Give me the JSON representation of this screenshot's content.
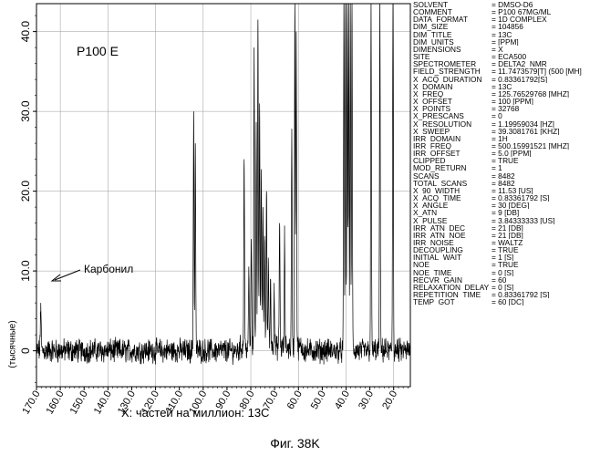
{
  "chart_data": {
    "type": "line",
    "title": "",
    "annotation": "P100 E",
    "peak_label": "Карбонил",
    "xlabel": "X: частей на миллион: 13C",
    "ylabel": "(тысячные)",
    "xlim": [
      170.0,
      13.0
    ],
    "ylim": [
      -4.5,
      43.5
    ],
    "x_ticks": [
      "170.0",
      "160.0",
      "150.0",
      "140.0",
      "130.0",
      "120.0",
      "110.0",
      "100.0",
      "90.0",
      "80.0",
      "70.0",
      "60.0",
      "50.0",
      "40.0",
      "30.0",
      "20.0"
    ],
    "y_ticks": [
      "0",
      "10.0",
      "20.0",
      "30.0",
      "40.0"
    ],
    "grid": true,
    "series": [
      {
        "peaks": [
          {
            "x": 168.2,
            "y": 6.0
          },
          {
            "x": 104.0,
            "y": 30.0
          },
          {
            "x": 103.3,
            "y": 26.0
          },
          {
            "x": 82.8,
            "y": 24.0
          },
          {
            "x": 80.8,
            "y": 9.5
          },
          {
            "x": 79.8,
            "y": 14.0
          },
          {
            "x": 78.6,
            "y": 38.0
          },
          {
            "x": 77.7,
            "y": 28.0
          },
          {
            "x": 77.0,
            "y": 41.5
          },
          {
            "x": 76.3,
            "y": 31.0
          },
          {
            "x": 75.6,
            "y": 22.0
          },
          {
            "x": 74.9,
            "y": 18.0
          },
          {
            "x": 74.2,
            "y": 14.0
          },
          {
            "x": 73.4,
            "y": 20.0
          },
          {
            "x": 72.6,
            "y": 11.0
          },
          {
            "x": 71.7,
            "y": 9.0
          },
          {
            "x": 70.2,
            "y": 8.0
          },
          {
            "x": 67.9,
            "y": 16.0
          },
          {
            "x": 65.8,
            "y": 14.0
          },
          {
            "x": 62.8,
            "y": 27.0
          },
          {
            "x": 61.5,
            "y": 43.5
          },
          {
            "x": 60.9,
            "y": 40.0
          },
          {
            "x": 40.9,
            "y": 43.5
          },
          {
            "x": 40.2,
            "y": 43.5
          },
          {
            "x": 39.5,
            "y": 43.5
          },
          {
            "x": 38.9,
            "y": 43.5
          },
          {
            "x": 38.2,
            "y": 43.5
          },
          {
            "x": 37.5,
            "y": 43.5
          },
          {
            "x": 29.5,
            "y": 43.5
          },
          {
            "x": 25.8,
            "y": 43.5
          },
          {
            "x": 20.3,
            "y": 43.5
          }
        ]
      }
    ]
  },
  "params": [
    {
      "k": "SOLVENT",
      "v": "= DMSO-D6"
    },
    {
      "k": "COMMENT",
      "v": "= P100 67MG/ML"
    },
    {
      "k": "DATA_FORMAT",
      "v": "= 1D COMPLEX"
    },
    {
      "k": "DIM_SIZE",
      "v": "= 104856"
    },
    {
      "k": "DIM_TITLE",
      "v": "= 13C"
    },
    {
      "k": "DIM_UNITS",
      "v": "= [PPM]"
    },
    {
      "k": "DIMENSIONS",
      "v": "= X"
    },
    {
      "k": "SITE",
      "v": "= ECA500"
    },
    {
      "k": "SPECTROMETER",
      "v": "= DELTA2_NMR"
    },
    {
      "k": "FIELD_STRENGTH",
      "v": "= 11.7473579[T] (500 [MH]"
    },
    {
      "k": "X_ACQ_DURATION",
      "v": "= 0.83361792[S]"
    },
    {
      "k": "X_DOMAIN",
      "v": "= 13C"
    },
    {
      "k": "X_FREQ",
      "v": "= 125.76529768 [MHZ]"
    },
    {
      "k": "X_OFFSET",
      "v": "= 100 [PPM]"
    },
    {
      "k": "X_POINTS",
      "v": "= 32768"
    },
    {
      "k": "X_PRESCANS",
      "v": "= 0"
    },
    {
      "k": "X_RESOLUTION",
      "v": "= 1.19959034 [HZ]"
    },
    {
      "k": "X_SWEEP",
      "v": "= 39.3081761 [KHZ]"
    },
    {
      "k": "IRR_DOMAIN",
      "v": "= 1H"
    },
    {
      "k": "IRR_FREQ",
      "v": "= 500.15991521 [MHZ]"
    },
    {
      "k": "IRR_OFFSET",
      "v": "= 5.0 [PPM]"
    },
    {
      "k": "CLIPPED",
      "v": "= TRUE"
    },
    {
      "k": "MOD_RETURN",
      "v": "= 1"
    },
    {
      "k": "SCANS",
      "v": "= 8482"
    },
    {
      "k": "TOTAL_SCANS",
      "v": "= 8482"
    },
    {
      "k": "X_90_WIDTH",
      "v": "= 11.53 [US]"
    },
    {
      "k": "X_ACQ_TIME",
      "v": "= 0.83361792 [S]"
    },
    {
      "k": "X_ANGLE",
      "v": "= 30 [DEG]"
    },
    {
      "k": "X_ATN",
      "v": "= 9 [DB]"
    },
    {
      "k": "X_PULSE",
      "v": "= 3.84333333 [US]"
    },
    {
      "k": "IRR_ATN_DEC",
      "v": "= 21 [DB]"
    },
    {
      "k": "IRR_ATN_NOE",
      "v": "= 21 [DB]"
    },
    {
      "k": "IRR_NOISE",
      "v": "= WALTZ"
    },
    {
      "k": "DECOUPLING",
      "v": "= TRUE"
    },
    {
      "k": "INITIAL_WAIT",
      "v": "= 1 [S]"
    },
    {
      "k": "NOE",
      "v": "= TRUE"
    },
    {
      "k": "NOE_TIME",
      "v": "= 0 [S]"
    },
    {
      "k": "RECVR_GAIN",
      "v": "= 60"
    },
    {
      "k": "RELAXATION_DELAY",
      "v": "= 0 [S]"
    },
    {
      "k": "REPETITION_TIME",
      "v": "= 0.83361792 [S]"
    },
    {
      "k": "TEMP_GOT",
      "v": "= 60 [DC]"
    }
  ],
  "caption": "Фиг. 38K",
  "colors": {
    "line": "#000000",
    "grid": "#9a9a9a",
    "frame": "#000000"
  }
}
